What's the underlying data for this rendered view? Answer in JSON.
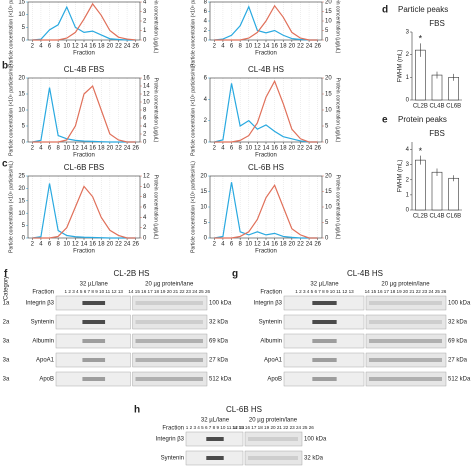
{
  "chart_data": [
    {
      "type": "line",
      "xlabel": "Fraction",
      "x": [
        2,
        4,
        6,
        8,
        10,
        12,
        14,
        16,
        18,
        20,
        22,
        24,
        26
      ],
      "xlim": [
        1,
        27
      ],
      "xticks": [
        2,
        4,
        6,
        8,
        10,
        12,
        14,
        16,
        18,
        20,
        22,
        24,
        26
      ],
      "ylabel": "Particle concentration (×10⁹ particles/mL)",
      "y2label": "Protein concentration (µg/µL)",
      "ylim": [
        0,
        15
      ],
      "yticks": [
        0,
        5,
        10,
        15
      ],
      "y2lim": [
        0,
        4
      ],
      "y2ticks": [
        0,
        1,
        2,
        3,
        4
      ],
      "grid": true,
      "series": [
        {
          "name": "Particles",
          "color": "#29a9e0",
          "values": [
            0,
            0.3,
            4,
            6,
            13,
            5,
            3,
            3.5,
            2,
            0.5,
            0.2,
            0,
            0
          ]
        },
        {
          "name": "Protein",
          "color": "#e0705a",
          "axis": "y2",
          "values": [
            0,
            0,
            0,
            0,
            0.2,
            0.8,
            2.2,
            3.8,
            2.6,
            1,
            0.3,
            0.1,
            0
          ]
        }
      ]
    },
    {
      "type": "line",
      "xlabel": "Fraction",
      "x": [
        2,
        4,
        6,
        8,
        10,
        12,
        14,
        16,
        18,
        20,
        22,
        24,
        26
      ],
      "xlim": [
        1,
        27
      ],
      "xticks": [
        2,
        4,
        6,
        8,
        10,
        12,
        14,
        16,
        18,
        20,
        22,
        24,
        26
      ],
      "ylabel": "Particle concentration (×10⁹ particles/mL)",
      "y2label": "Protein concentration (µg/µL)",
      "ylim": [
        0,
        8
      ],
      "yticks": [
        0,
        2,
        4,
        6,
        8
      ],
      "y2lim": [
        0,
        20
      ],
      "y2ticks": [
        0,
        5,
        10,
        15,
        20
      ],
      "grid": true,
      "series": [
        {
          "name": "Particles",
          "color": "#29a9e0",
          "values": [
            0,
            0.2,
            1,
            3,
            7,
            2,
            1.5,
            2,
            1,
            0.3,
            0.1,
            0,
            0
          ]
        },
        {
          "name": "Protein",
          "color": "#e0705a",
          "axis": "y2",
          "values": [
            0,
            0,
            0,
            0,
            1,
            4,
            10,
            18,
            12,
            4,
            1,
            0,
            0
          ]
        }
      ]
    },
    {
      "type": "line",
      "letter": "b",
      "title": "CL-4B FBS",
      "xlabel": "Fraction",
      "x": [
        2,
        4,
        6,
        8,
        10,
        12,
        14,
        16,
        18,
        20,
        22,
        24,
        26
      ],
      "xlim": [
        1,
        27
      ],
      "xticks": [
        2,
        4,
        6,
        8,
        10,
        12,
        14,
        16,
        18,
        20,
        22,
        24,
        26
      ],
      "ylabel": "Particle concentration (×10⁹ particles/mL)",
      "y2label": "Protein concentration (µg/µL)",
      "ylim": [
        0,
        20
      ],
      "yticks": [
        0,
        5,
        10,
        15,
        20
      ],
      "y2lim": [
        0,
        16
      ],
      "y2ticks": [
        0,
        2,
        4,
        6,
        8,
        10,
        12,
        14,
        16
      ],
      "grid": true,
      "series": [
        {
          "name": "Particles",
          "color": "#29a9e0",
          "values": [
            0,
            0.5,
            17,
            2,
            1,
            0.5,
            0.3,
            0.2,
            0.1,
            0,
            0,
            0,
            0
          ]
        },
        {
          "name": "Protein",
          "color": "#e0705a",
          "axis": "y2",
          "values": [
            0,
            0,
            0,
            0,
            0.5,
            4,
            12,
            14,
            8,
            2,
            0.5,
            0,
            0
          ]
        }
      ]
    },
    {
      "type": "line",
      "title": "CL-4B HS",
      "xlabel": "Fraction",
      "x": [
        2,
        4,
        6,
        8,
        10,
        12,
        14,
        16,
        18,
        20,
        22,
        24,
        26
      ],
      "xlim": [
        1,
        27
      ],
      "xticks": [
        2,
        4,
        6,
        8,
        10,
        12,
        14,
        16,
        18,
        20,
        22,
        24,
        26
      ],
      "ylabel": "Particle concentration (×10⁹ particles/mL)",
      "y2label": "Protein concentration (µg/µL)",
      "ylim": [
        0,
        6
      ],
      "yticks": [
        0,
        2,
        4,
        6
      ],
      "y2lim": [
        0,
        20
      ],
      "y2ticks": [
        0,
        5,
        10,
        15,
        20
      ],
      "grid": true,
      "series": [
        {
          "name": "Particles",
          "color": "#29a9e0",
          "values": [
            0,
            0.2,
            5.5,
            1.5,
            2,
            1.2,
            1.6,
            1,
            0.5,
            0.3,
            0.1,
            0,
            0
          ]
        },
        {
          "name": "Protein",
          "color": "#e0705a",
          "axis": "y2",
          "values": [
            0,
            0,
            0,
            0.5,
            2,
            6,
            14,
            19,
            12,
            4,
            1,
            0,
            0
          ]
        }
      ]
    },
    {
      "type": "line",
      "letter": "c",
      "title": "CL-6B FBS",
      "xlabel": "Fraction",
      "x": [
        2,
        4,
        6,
        8,
        10,
        12,
        14,
        16,
        18,
        20,
        22,
        24,
        26
      ],
      "xlim": [
        1,
        27
      ],
      "xticks": [
        2,
        4,
        6,
        8,
        10,
        12,
        14,
        16,
        18,
        20,
        22,
        24,
        26
      ],
      "ylabel": "Particle concentration (×10⁹ particles/mL)",
      "y2label": "Protein concentration (µg/µL)",
      "ylim": [
        0,
        25
      ],
      "yticks": [
        0,
        5,
        10,
        15,
        20,
        25
      ],
      "y2lim": [
        0,
        12
      ],
      "y2ticks": [
        0,
        2,
        4,
        6,
        8,
        10,
        12
      ],
      "grid": true,
      "series": [
        {
          "name": "Particles",
          "color": "#29a9e0",
          "values": [
            0,
            0.5,
            22,
            3,
            1,
            0.5,
            0.3,
            0.2,
            0.1,
            0,
            0,
            0,
            0
          ]
        },
        {
          "name": "Protein",
          "color": "#e0705a",
          "axis": "y2",
          "values": [
            0,
            0,
            0,
            0.3,
            2,
            6,
            10,
            8,
            4,
            1.5,
            0.5,
            0,
            0
          ]
        }
      ]
    },
    {
      "type": "line",
      "title": "CL-6B HS",
      "xlabel": "Fraction",
      "x": [
        2,
        4,
        6,
        8,
        10,
        12,
        14,
        16,
        18,
        20,
        22,
        24,
        26
      ],
      "xlim": [
        1,
        27
      ],
      "xticks": [
        2,
        4,
        6,
        8,
        10,
        12,
        14,
        16,
        18,
        20,
        22,
        24,
        26
      ],
      "ylabel": "Particle concentration (×10⁹ particles/mL)",
      "y2label": "Protein concentration (µg/µL)",
      "ylim": [
        0,
        20
      ],
      "yticks": [
        0,
        5,
        10,
        15,
        20
      ],
      "y2lim": [
        0,
        20
      ],
      "y2ticks": [
        0,
        5,
        10,
        15,
        20
      ],
      "grid": true,
      "series": [
        {
          "name": "Particles",
          "color": "#29a9e0",
          "values": [
            0,
            0.5,
            18,
            2,
            1,
            2,
            1,
            1.5,
            0.5,
            0.2,
            0,
            0,
            0
          ]
        },
        {
          "name": "Protein",
          "color": "#e0705a",
          "axis": "y2",
          "values": [
            0,
            0,
            0,
            0.5,
            2,
            6,
            13,
            17,
            10,
            3,
            1,
            0,
            0
          ]
        }
      ]
    },
    {
      "type": "bar",
      "letter": "d",
      "title": "Particle peaks",
      "subtitle": "FBS",
      "ylabel": "FWHM (mL)",
      "annotation": "*",
      "categories": [
        "CL2B",
        "CL4B",
        "CL6B"
      ],
      "values": [
        2.2,
        1.1,
        1.0
      ],
      "errors": [
        0.3,
        0.15,
        0.15
      ],
      "color": "#ffffff",
      "ylim": [
        0,
        3
      ],
      "yticks": [
        0,
        1,
        2,
        3
      ]
    },
    {
      "type": "bar",
      "letter": "e",
      "title": "Protein peaks",
      "subtitle": "FBS",
      "ylabel": "FWHM (mL)",
      "annotation": "*",
      "categories": [
        "CL2B",
        "CL4B",
        "CL6B"
      ],
      "values": [
        3.3,
        2.5,
        2.1
      ],
      "errors": [
        0.3,
        0.25,
        0.2
      ],
      "color": "#ffffff",
      "ylim": [
        0,
        4.5
      ],
      "yticks": [
        0,
        1,
        2,
        3,
        4
      ]
    }
  ],
  "blots": [
    {
      "letter": "f",
      "title": "CL-2B HS",
      "category_header": "Category",
      "fraction_label": "Fraction",
      "left_header": "32 µL/lane",
      "right_header": "20 µg protein/lane",
      "left_fractions": "1 2 3 4 5 6 7 8 9 10 11 12 13",
      "right_fractions": "14 15 16 17 18 19 20 21 22 23 24 25 26",
      "rows": [
        {
          "category": "1a",
          "name": "Integrin β3",
          "size": "100 kDa"
        },
        {
          "category": "2a",
          "name": "Syntenin",
          "size": "32 kDa"
        },
        {
          "category": "3a",
          "name": "Albumin",
          "size": "69 kDa"
        },
        {
          "category": "3a",
          "name": "ApoA1",
          "size": "27 kDa"
        },
        {
          "category": "3a",
          "name": "ApoB",
          "size": "512 kDa"
        }
      ]
    },
    {
      "letter": "g",
      "title": "CL-4B HS",
      "fraction_label": "Fraction",
      "left_header": "32 µL/lane",
      "right_header": "20 µg protein/lane",
      "left_fractions": "1 2 3 4 5 6 7 8 9 10 11 12 13",
      "right_fractions": "14 15 16 17 18 19 20 21 22 23 24 25 26",
      "rows": [
        {
          "name": "Integrin β3",
          "size": "100 kDa"
        },
        {
          "name": "Syntenin",
          "size": "32 kDa"
        },
        {
          "name": "Albumin",
          "size": "69 kDa"
        },
        {
          "name": "ApoA1",
          "size": "27 kDa"
        },
        {
          "name": "ApoB",
          "size": "512 kDa"
        }
      ]
    },
    {
      "letter": "h",
      "title": "CL-6B HS",
      "fraction_label": "Fraction",
      "left_header": "32 µL/lane",
      "right_header": "20 µg protein/lane",
      "left_fractions": "1 2 3 4 5 6 7 8 9 10 11 12 13",
      "right_fractions": "14 15 16 17 18 19 20 21 22 23 24 25 26",
      "rows": [
        {
          "name": "Integrin β3",
          "size": "100 kDa"
        },
        {
          "name": "Syntenin",
          "size": "32 kDa"
        }
      ]
    }
  ]
}
